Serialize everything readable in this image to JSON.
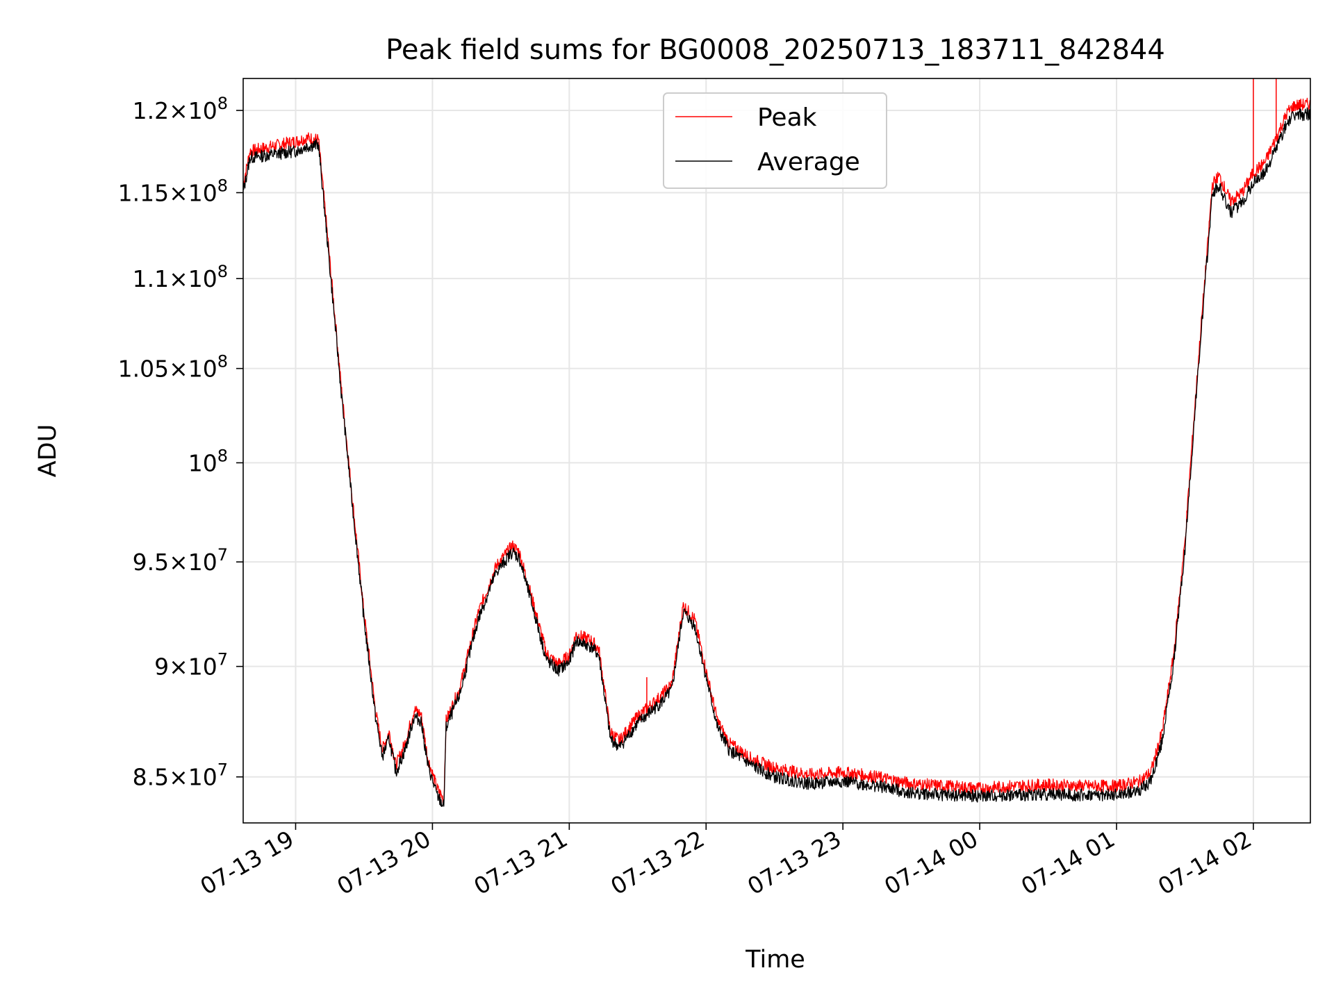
{
  "chart_data": {
    "type": "line",
    "title": "Peak field sums for BG0008_20250713_183711_842844",
    "xlabel": "Time",
    "ylabel": "ADU",
    "yscale": "log",
    "xlim": [
      "2025-07-13T18:37",
      "2025-07-14T02:25"
    ],
    "ylim": [
      83000000,
      122000000
    ],
    "grid": true,
    "legend_position": "upper center",
    "x_ticks": [
      {
        "value": "2025-07-13T19:00",
        "label": "07-13 19"
      },
      {
        "value": "2025-07-13T20:00",
        "label": "07-13 20"
      },
      {
        "value": "2025-07-13T21:00",
        "label": "07-13 21"
      },
      {
        "value": "2025-07-13T22:00",
        "label": "07-13 22"
      },
      {
        "value": "2025-07-13T23:00",
        "label": "07-13 23"
      },
      {
        "value": "2025-07-14T00:00",
        "label": "07-14 00"
      },
      {
        "value": "2025-07-14T01:00",
        "label": "07-14 01"
      },
      {
        "value": "2025-07-14T02:00",
        "label": "07-14 02"
      }
    ],
    "y_ticks": [
      {
        "value": 85000000,
        "mant": "8.5",
        "exp": "7"
      },
      {
        "value": 90000000,
        "mant": "9",
        "exp": "7"
      },
      {
        "value": 95000000,
        "mant": "9.5",
        "exp": "7"
      },
      {
        "value": 100000000,
        "mant": "",
        "exp": "8"
      },
      {
        "value": 105000000,
        "mant": "1.05",
        "exp": "8"
      },
      {
        "value": 110000000,
        "mant": "1.1",
        "exp": "8"
      },
      {
        "value": 115000000,
        "mant": "1.15",
        "exp": "8"
      },
      {
        "value": 120000000,
        "mant": "1.2",
        "exp": "8"
      }
    ],
    "series": [
      {
        "name": "Peak",
        "color": "#ff0000",
        "points": [
          [
            "2025-07-13T18:37",
            115500000
          ],
          [
            "2025-07-13T18:40",
            117500000
          ],
          [
            "2025-07-13T18:50",
            117800000
          ],
          [
            "2025-07-13T19:00",
            118100000
          ],
          [
            "2025-07-13T19:05",
            118300000
          ],
          [
            "2025-07-13T19:10",
            118200000
          ],
          [
            "2025-07-13T19:15",
            111000000
          ],
          [
            "2025-07-13T19:20",
            104000000
          ],
          [
            "2025-07-13T19:25",
            98000000
          ],
          [
            "2025-07-13T19:30",
            92500000
          ],
          [
            "2025-07-13T19:35",
            88000000
          ],
          [
            "2025-07-13T19:38",
            86200000
          ],
          [
            "2025-07-13T19:41",
            87000000
          ],
          [
            "2025-07-13T19:44",
            85500000
          ],
          [
            "2025-07-13T19:48",
            86500000
          ],
          [
            "2025-07-13T19:52",
            88000000
          ],
          [
            "2025-07-13T19:55",
            87800000
          ],
          [
            "2025-07-13T19:58",
            85800000
          ],
          [
            "2025-07-13T20:02",
            84500000
          ],
          [
            "2025-07-13T20:05",
            84000000
          ],
          [
            "2025-07-13T20:06",
            87500000
          ],
          [
            "2025-07-13T20:12",
            89000000
          ],
          [
            "2025-07-13T20:20",
            92500000
          ],
          [
            "2025-07-13T20:28",
            94800000
          ],
          [
            "2025-07-13T20:35",
            95800000
          ],
          [
            "2025-07-13T20:38",
            95500000
          ],
          [
            "2025-07-13T20:43",
            93500000
          ],
          [
            "2025-07-13T20:50",
            90600000
          ],
          [
            "2025-07-13T20:55",
            90100000
          ],
          [
            "2025-07-13T21:00",
            90500000
          ],
          [
            "2025-07-13T21:03",
            91500000
          ],
          [
            "2025-07-13T21:10",
            91200000
          ],
          [
            "2025-07-13T21:13",
            90800000
          ],
          [
            "2025-07-13T21:18",
            87000000
          ],
          [
            "2025-07-13T21:22",
            86600000
          ],
          [
            "2025-07-13T21:30",
            87700000
          ],
          [
            "2025-07-13T21:40",
            88600000
          ],
          [
            "2025-07-13T21:45",
            89200000
          ],
          [
            "2025-07-13T21:50",
            92900000
          ],
          [
            "2025-07-13T21:55",
            92200000
          ],
          [
            "2025-07-13T22:00",
            89800000
          ],
          [
            "2025-07-13T22:05",
            87500000
          ],
          [
            "2025-07-13T22:10",
            86500000
          ],
          [
            "2025-07-13T22:20",
            85800000
          ],
          [
            "2025-07-13T22:30",
            85400000
          ],
          [
            "2025-07-13T22:45",
            85100000
          ],
          [
            "2025-07-13T23:00",
            85200000
          ],
          [
            "2025-07-13T23:15",
            85000000
          ],
          [
            "2025-07-13T23:30",
            84700000
          ],
          [
            "2025-07-13T23:45",
            84600000
          ],
          [
            "2025-07-14T00:00",
            84500000
          ],
          [
            "2025-07-14T00:15",
            84600000
          ],
          [
            "2025-07-14T00:30",
            84650000
          ],
          [
            "2025-07-14T00:45",
            84600000
          ],
          [
            "2025-07-14T01:00",
            84600000
          ],
          [
            "2025-07-14T01:10",
            84800000
          ],
          [
            "2025-07-14T01:15",
            85200000
          ],
          [
            "2025-07-14T01:20",
            87000000
          ],
          [
            "2025-07-14T01:25",
            90500000
          ],
          [
            "2025-07-14T01:30",
            96000000
          ],
          [
            "2025-07-14T01:35",
            104000000
          ],
          [
            "2025-07-14T01:40",
            112000000
          ],
          [
            "2025-07-14T01:42",
            115500000
          ],
          [
            "2025-07-14T01:45",
            116000000
          ],
          [
            "2025-07-14T01:50",
            114500000
          ],
          [
            "2025-07-14T01:55",
            115000000
          ],
          [
            "2025-07-14T02:00",
            116200000
          ],
          [
            "2025-07-14T02:05",
            116800000
          ],
          [
            "2025-07-14T02:10",
            118300000
          ],
          [
            "2025-07-14T02:15",
            119900000
          ],
          [
            "2025-07-14T02:18",
            120300000
          ],
          [
            "2025-07-14T02:25",
            120400000
          ]
        ],
        "spikes": [
          [
            "2025-07-14T02:00",
            124000000
          ],
          [
            "2025-07-14T02:10",
            122500000
          ],
          [
            "2025-07-13T21:34",
            89500000
          ]
        ]
      },
      {
        "name": "Average",
        "color": "#000000",
        "points": [
          [
            "2025-07-13T18:37",
            115000000
          ],
          [
            "2025-07-13T18:40",
            117100000
          ],
          [
            "2025-07-13T18:50",
            117300000
          ],
          [
            "2025-07-13T19:00",
            117500000
          ],
          [
            "2025-07-13T19:05",
            117800000
          ],
          [
            "2025-07-13T19:10",
            117900000
          ],
          [
            "2025-07-13T19:15",
            110600000
          ],
          [
            "2025-07-13T19:20",
            103700000
          ],
          [
            "2025-07-13T19:25",
            97700000
          ],
          [
            "2025-07-13T19:30",
            92200000
          ],
          [
            "2025-07-13T19:35",
            87700000
          ],
          [
            "2025-07-13T19:38",
            85900000
          ],
          [
            "2025-07-13T19:41",
            86700000
          ],
          [
            "2025-07-13T19:44",
            85200000
          ],
          [
            "2025-07-13T19:48",
            86200000
          ],
          [
            "2025-07-13T19:52",
            87700000
          ],
          [
            "2025-07-13T19:55",
            87500000
          ],
          [
            "2025-07-13T19:58",
            85500000
          ],
          [
            "2025-07-13T20:02",
            84200000
          ],
          [
            "2025-07-13T20:05",
            83700000
          ],
          [
            "2025-07-13T20:06",
            87200000
          ],
          [
            "2025-07-13T20:12",
            88700000
          ],
          [
            "2025-07-13T20:20",
            92200000
          ],
          [
            "2025-07-13T20:28",
            94500000
          ],
          [
            "2025-07-13T20:35",
            95500000
          ],
          [
            "2025-07-13T20:38",
            95200000
          ],
          [
            "2025-07-13T20:43",
            93200000
          ],
          [
            "2025-07-13T20:50",
            90300000
          ],
          [
            "2025-07-13T20:55",
            89800000
          ],
          [
            "2025-07-13T21:00",
            90200000
          ],
          [
            "2025-07-13T21:03",
            91200000
          ],
          [
            "2025-07-13T21:10",
            90900000
          ],
          [
            "2025-07-13T21:13",
            90500000
          ],
          [
            "2025-07-13T21:18",
            86700000
          ],
          [
            "2025-07-13T21:22",
            86300000
          ],
          [
            "2025-07-13T21:30",
            87400000
          ],
          [
            "2025-07-13T21:40",
            88300000
          ],
          [
            "2025-07-13T21:45",
            88900000
          ],
          [
            "2025-07-13T21:50",
            92600000
          ],
          [
            "2025-07-13T21:55",
            91900000
          ],
          [
            "2025-07-13T22:00",
            89500000
          ],
          [
            "2025-07-13T22:05",
            87200000
          ],
          [
            "2025-07-13T22:10",
            86200000
          ],
          [
            "2025-07-13T22:20",
            85500000
          ],
          [
            "2025-07-13T22:30",
            85000000
          ],
          [
            "2025-07-13T22:45",
            84700000
          ],
          [
            "2025-07-13T23:00",
            84800000
          ],
          [
            "2025-07-13T23:15",
            84600000
          ],
          [
            "2025-07-13T23:30",
            84300000
          ],
          [
            "2025-07-13T23:45",
            84200000
          ],
          [
            "2025-07-14T00:00",
            84150000
          ],
          [
            "2025-07-14T00:15",
            84200000
          ],
          [
            "2025-07-14T00:30",
            84250000
          ],
          [
            "2025-07-14T00:45",
            84200000
          ],
          [
            "2025-07-14T01:00",
            84200000
          ],
          [
            "2025-07-14T01:10",
            84400000
          ],
          [
            "2025-07-14T01:15",
            84800000
          ],
          [
            "2025-07-14T01:20",
            86600000
          ],
          [
            "2025-07-14T01:25",
            90100000
          ],
          [
            "2025-07-14T01:30",
            95600000
          ],
          [
            "2025-07-14T01:35",
            103600000
          ],
          [
            "2025-07-14T01:40",
            111600000
          ],
          [
            "2025-07-14T01:42",
            115000000
          ],
          [
            "2025-07-14T01:45",
            115400000
          ],
          [
            "2025-07-14T01:50",
            113800000
          ],
          [
            "2025-07-14T01:55",
            114400000
          ],
          [
            "2025-07-14T02:00",
            115600000
          ],
          [
            "2025-07-14T02:05",
            116200000
          ],
          [
            "2025-07-14T02:10",
            117700000
          ],
          [
            "2025-07-14T02:15",
            119300000
          ],
          [
            "2025-07-14T02:18",
            119700000
          ],
          [
            "2025-07-14T02:25",
            119800000
          ]
        ]
      }
    ]
  }
}
